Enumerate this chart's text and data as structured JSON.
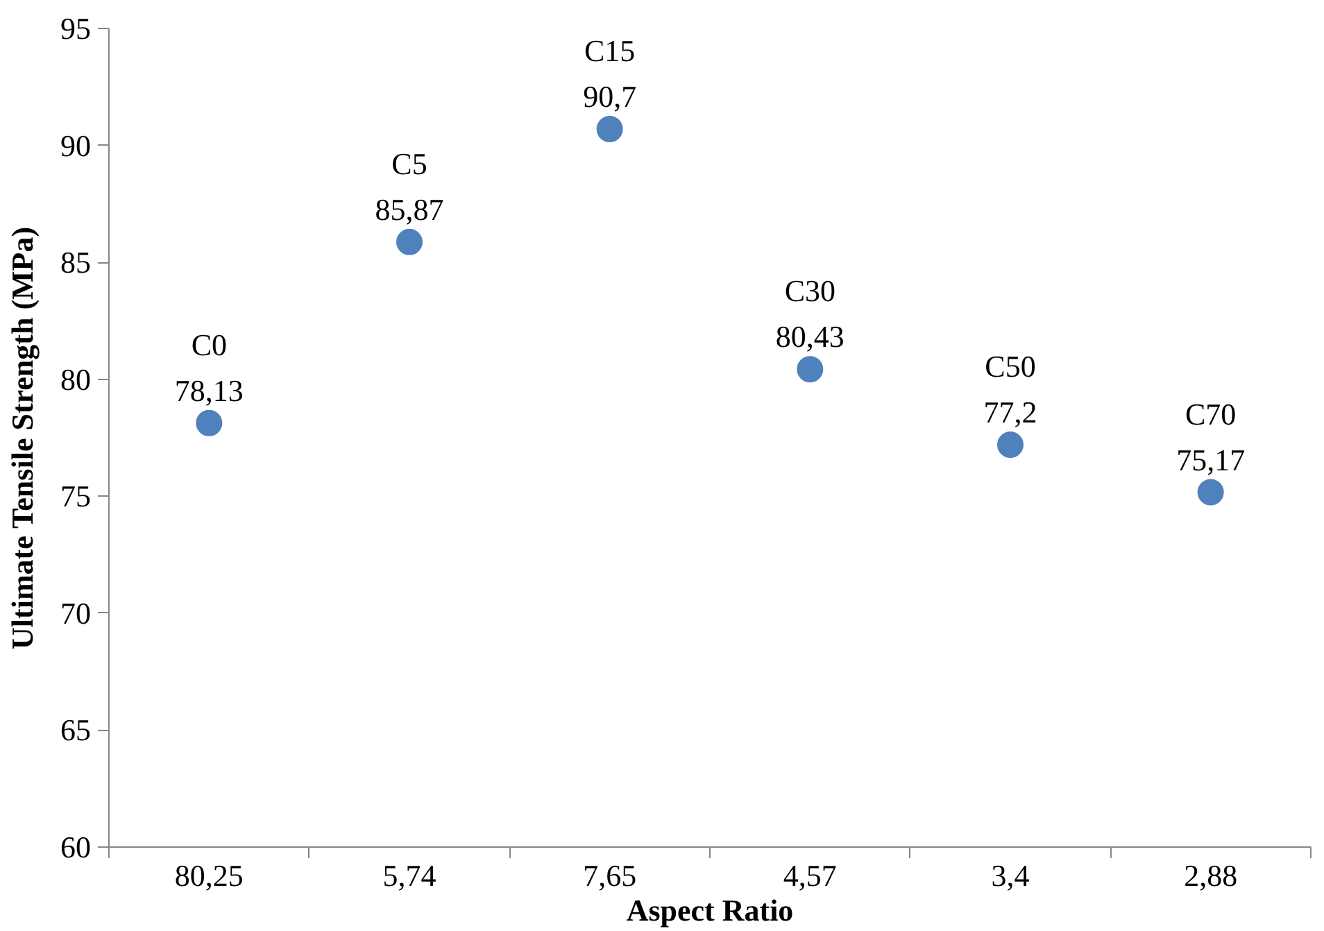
{
  "chart_data": {
    "type": "scatter",
    "xlabel": "Aspect Ratio",
    "ylabel": "Ultimate Tensile Strength (MPa)",
    "categories": [
      "80,25",
      "5,74",
      "7,65",
      "4,57",
      "3,4",
      "2,88"
    ],
    "series": [
      {
        "color": "#4f81bd",
        "values": [
          78.13,
          85.87,
          90.7,
          80.43,
          77.2,
          75.17
        ],
        "value_labels": [
          "78,13",
          "85,87",
          "90,7",
          "80,43",
          "77,2",
          "75,17"
        ]
      }
    ],
    "annotations": [
      {
        "text": "C0",
        "x": "80,25",
        "y": 78.13
      },
      {
        "text": "C5",
        "x": "5,74",
        "y": 85.87
      },
      {
        "text": "C15",
        "x": "7,65",
        "y": 90.7
      },
      {
        "text": "C30",
        "x": "4,57",
        "y": 80.43
      },
      {
        "text": "C50",
        "x": "3,4",
        "y": 77.2
      },
      {
        "text": "C70",
        "x": "2,88",
        "y": 75.17
      }
    ],
    "ylim": [
      60,
      95
    ],
    "yticks": [
      60,
      65,
      70,
      75,
      80,
      85,
      90,
      95
    ],
    "grid": false,
    "marker": "circle"
  }
}
